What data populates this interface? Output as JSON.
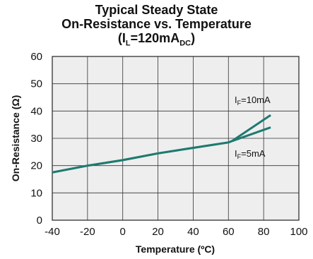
{
  "chart_data": {
    "type": "line",
    "title": {
      "line1": "Typical Steady State",
      "line2": "On-Resistance vs. Temperature",
      "line3_prefix": "(I",
      "line3_sub1": "L",
      "line3_mid": "=120mA",
      "line3_sub2": "DC",
      "line3_suffix": ")"
    },
    "xlabel": "Temperature (ºC)",
    "ylabel": "On-Resistance (Ω)",
    "xlim": [
      -40,
      100
    ],
    "ylim": [
      0,
      60
    ],
    "xticks": [
      -40,
      -20,
      0,
      20,
      40,
      60,
      80,
      100
    ],
    "yticks": [
      0,
      10,
      20,
      30,
      40,
      50,
      60
    ],
    "grid": true,
    "plot_background": "#eeeeee",
    "series_color": "#1f7a70",
    "series": [
      {
        "name": "IF=10mA",
        "label_prefix": "I",
        "label_sub": "F",
        "label_suffix": "=10mA",
        "x": [
          -40,
          -20,
          0,
          20,
          40,
          60,
          62,
          84
        ],
        "y": [
          17.5,
          20,
          22,
          24.5,
          26.5,
          28.5,
          29,
          38.5
        ]
      },
      {
        "name": "IF=5mA",
        "label_prefix": "I",
        "label_sub": "F",
        "label_suffix": "=5mA",
        "x": [
          -40,
          -20,
          0,
          20,
          40,
          60,
          62,
          84
        ],
        "y": [
          17.5,
          20,
          22,
          24.5,
          26.5,
          28.5,
          29,
          34
        ]
      }
    ]
  }
}
